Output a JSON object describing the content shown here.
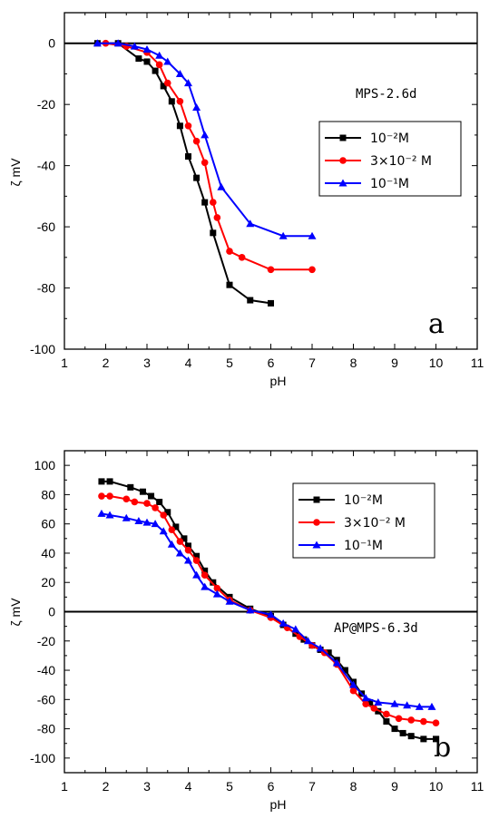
{
  "chart_data": [
    {
      "type": "line",
      "panel_label": "a",
      "annotation": "MPS-2.6d",
      "xlabel": "pH",
      "ylabel": "ζ mV",
      "xlim": [
        1,
        11
      ],
      "ylim": [
        -100,
        10
      ],
      "x_ticks": [
        1,
        2,
        3,
        4,
        5,
        6,
        7,
        8,
        9,
        10,
        11
      ],
      "y_ticks": [
        0,
        -20,
        -40,
        -60,
        -80,
        -100
      ],
      "zero_line": true,
      "legend_position": "upper-right",
      "series": [
        {
          "name": "10⁻²M",
          "color": "#000000",
          "marker": "square",
          "x": [
            1.8,
            2.3,
            2.8,
            3.0,
            3.2,
            3.4,
            3.6,
            3.8,
            4.0,
            4.2,
            4.4,
            4.6,
            5.0,
            5.5,
            6.0
          ],
          "y": [
            0,
            0,
            -5,
            -6,
            -9,
            -14,
            -19,
            -27,
            -37,
            -44,
            -52,
            -62,
            -79,
            -84,
            -85
          ]
        },
        {
          "name": "3×10⁻² M",
          "color": "#ff0000",
          "marker": "circle",
          "x": [
            2.0,
            2.5,
            3.0,
            3.3,
            3.5,
            3.8,
            4.0,
            4.2,
            4.4,
            4.6,
            4.7,
            5.0,
            5.3,
            6.0,
            7.0
          ],
          "y": [
            0,
            -1,
            -3,
            -7,
            -13,
            -19,
            -27,
            -32,
            -39,
            -52,
            -57,
            -68,
            -70,
            -74,
            -74
          ]
        },
        {
          "name": "10⁻¹M",
          "color": "#0000ff",
          "marker": "triangle",
          "x": [
            1.8,
            2.3,
            2.7,
            3.0,
            3.3,
            3.5,
            3.8,
            4.0,
            4.2,
            4.4,
            4.8,
            5.5,
            6.3,
            7.0
          ],
          "y": [
            0,
            0,
            -1,
            -2,
            -4,
            -6,
            -10,
            -13,
            -21,
            -30,
            -47,
            -59,
            -63,
            -63
          ]
        }
      ]
    },
    {
      "type": "line",
      "panel_label": "b",
      "annotation": "AP@MPS-6.3d",
      "xlabel": "pH",
      "ylabel": "ζ mV",
      "xlim": [
        1,
        11
      ],
      "ylim": [
        -110,
        110
      ],
      "x_ticks": [
        1,
        2,
        3,
        4,
        5,
        6,
        7,
        8,
        9,
        10,
        11
      ],
      "y_ticks": [
        100,
        80,
        60,
        40,
        20,
        0,
        -20,
        -40,
        -60,
        -80,
        -100
      ],
      "zero_line": true,
      "legend_position": "upper-right",
      "series": [
        {
          "name": "10⁻²M",
          "color": "#000000",
          "marker": "square",
          "x": [
            1.9,
            2.1,
            2.6,
            2.9,
            3.1,
            3.3,
            3.5,
            3.7,
            3.9,
            4.0,
            4.2,
            4.4,
            4.6,
            5.0,
            5.5,
            6.0,
            6.3,
            6.6,
            6.8,
            7.0,
            7.2,
            7.4,
            7.6,
            7.8,
            8.0,
            8.2,
            8.4,
            8.6,
            8.8,
            9.0,
            9.2,
            9.4,
            9.7,
            10.0
          ],
          "y": [
            89,
            89,
            85,
            82,
            79,
            75,
            68,
            58,
            50,
            45,
            38,
            28,
            20,
            10,
            2,
            -3,
            -9,
            -15,
            -19,
            -23,
            -26,
            -28,
            -33,
            -40,
            -48,
            -56,
            -62,
            -68,
            -75,
            -80,
            -83,
            -85,
            -87,
            -87
          ]
        },
        {
          "name": "3×10⁻² M",
          "color": "#ff0000",
          "marker": "circle",
          "x": [
            1.9,
            2.1,
            2.5,
            2.7,
            3.0,
            3.2,
            3.4,
            3.6,
            3.8,
            4.0,
            4.2,
            4.4,
            4.7,
            5.0,
            5.5,
            6.0,
            6.4,
            6.7,
            7.0,
            7.3,
            7.6,
            8.0,
            8.3,
            8.5,
            8.8,
            9.1,
            9.4,
            9.7,
            10.0
          ],
          "y": [
            79,
            79,
            77,
            75,
            74,
            71,
            66,
            56,
            48,
            42,
            35,
            25,
            16,
            8,
            1,
            -4,
            -11,
            -17,
            -23,
            -28,
            -36,
            -54,
            -63,
            -66,
            -70,
            -73,
            -74,
            -75,
            -76
          ]
        },
        {
          "name": "10⁻¹M",
          "color": "#0000ff",
          "marker": "triangle",
          "x": [
            1.9,
            2.1,
            2.5,
            2.8,
            3.0,
            3.2,
            3.4,
            3.6,
            3.8,
            4.0,
            4.2,
            4.4,
            4.7,
            5.0,
            5.5,
            6.0,
            6.3,
            6.6,
            6.9,
            7.2,
            7.6,
            8.0,
            8.3,
            8.6,
            9.0,
            9.3,
            9.6,
            9.9
          ],
          "y": [
            67,
            66,
            64,
            62,
            61,
            60,
            55,
            46,
            40,
            35,
            25,
            17,
            12,
            7,
            1,
            -2,
            -8,
            -12,
            -20,
            -25,
            -35,
            -50,
            -59,
            -62,
            -63,
            -64,
            -65,
            -65
          ]
        }
      ]
    }
  ]
}
